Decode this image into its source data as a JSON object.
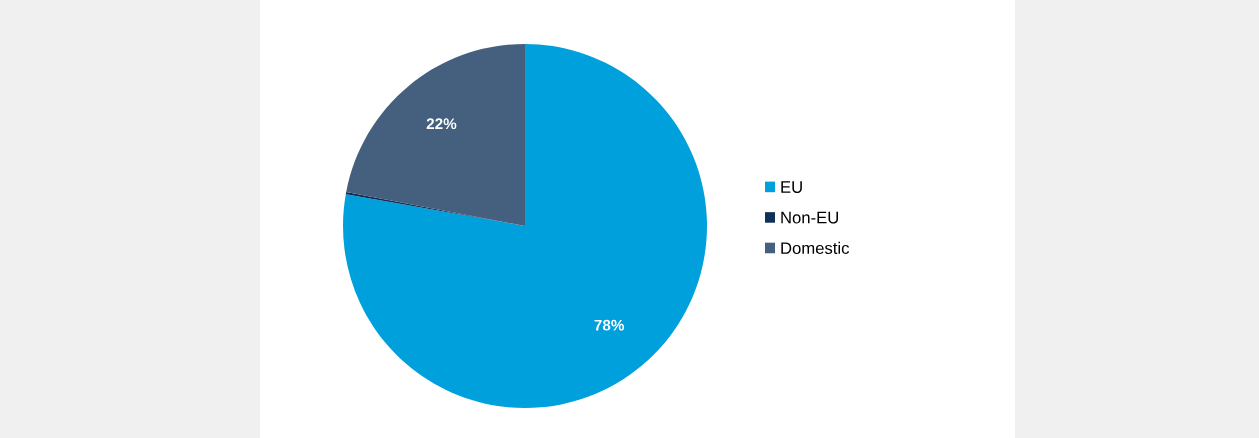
{
  "chart_data": {
    "type": "pie",
    "categories": [
      "EU",
      "Non-EU",
      "Domestic"
    ],
    "values": [
      77.8,
      0.2,
      22
    ],
    "colors": [
      "#00a0dc",
      "#10305a",
      "#45607f"
    ],
    "value_labels": [
      "78%",
      null,
      "22%"
    ],
    "legend": "right"
  }
}
